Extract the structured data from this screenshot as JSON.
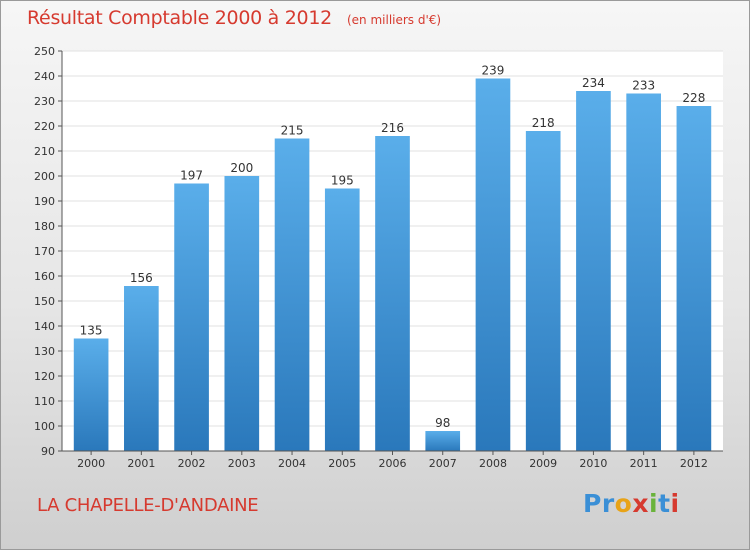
{
  "title": "Résultat Comptable 2000 à 2012",
  "subtitle": "(en milliers d'€)",
  "commune": "LA CHAPELLE-D'ANDAINE",
  "logo": {
    "text": "Proxiti",
    "colors": [
      "#3a8fd6",
      "#e8a317",
      "#d63a2f",
      "#6ab33b"
    ]
  },
  "colors": {
    "bar_top": "#5aaeea",
    "bar_bottom": "#2a78bb",
    "title": "#d63a2f",
    "plot_bg": "#ffffff",
    "grid": "#e2e2e2"
  },
  "chart_data": {
    "type": "bar",
    "title": "Résultat Comptable 2000 à 2012",
    "subtitle": "(en milliers d'€)",
    "categories": [
      "2000",
      "2001",
      "2002",
      "2003",
      "2004",
      "2005",
      "2006",
      "2007",
      "2008",
      "2009",
      "2010",
      "2011",
      "2012"
    ],
    "values": [
      135,
      156,
      197,
      200,
      215,
      195,
      216,
      98,
      239,
      218,
      234,
      233,
      228
    ],
    "xlabel": "",
    "ylabel": "",
    "ylim": [
      90,
      250
    ],
    "yticks": [
      90,
      100,
      110,
      120,
      130,
      140,
      150,
      160,
      170,
      180,
      190,
      200,
      210,
      220,
      230,
      240,
      250
    ],
    "grid": true,
    "data_labels": true
  }
}
